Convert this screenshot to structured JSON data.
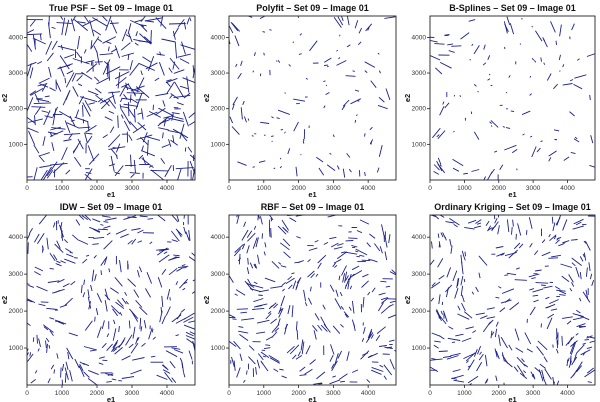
{
  "chart_data": [
    {
      "type": "quiver",
      "title": "True PSF – Set 09 – Image 01",
      "xlabel": "e1",
      "ylabel": "e2",
      "xlim": [
        0,
        4800
      ],
      "ylim": [
        0,
        4600
      ],
      "xticks": [
        0,
        1000,
        2000,
        3000,
        4000
      ],
      "yticks": [
        1000,
        2000,
        3000,
        4000
      ],
      "line_color": "#1a1f8c",
      "density": "high",
      "seed": 11
    },
    {
      "type": "quiver",
      "title": "Polyfit – Set 09 – Image 01",
      "xlabel": "e1",
      "ylabel": "e2",
      "xlim": [
        0,
        4800
      ],
      "ylim": [
        0,
        4600
      ],
      "xticks": [
        0,
        1000,
        2000,
        3000,
        4000
      ],
      "yticks": [
        1000,
        2000,
        3000,
        4000
      ],
      "line_color": "#1a1f8c",
      "density": "low",
      "seed": 23
    },
    {
      "type": "quiver",
      "title": "B-Splines – Set 09 – Image 01",
      "xlabel": "e1",
      "ylabel": "e2",
      "xlim": [
        0,
        4800
      ],
      "ylim": [
        0,
        4600
      ],
      "xticks": [
        0,
        1000,
        2000,
        3000,
        4000
      ],
      "yticks": [
        1000,
        2000,
        3000,
        4000
      ],
      "line_color": "#1a1f8c",
      "density": "low",
      "seed": 37
    },
    {
      "type": "quiver",
      "title": "IDW – Set 09 – Image 01",
      "xlabel": "e1",
      "ylabel": "e2",
      "xlim": [
        0,
        4800
      ],
      "ylim": [
        0,
        4600
      ],
      "xticks": [
        0,
        1000,
        2000,
        3000,
        4000
      ],
      "yticks": [
        1000,
        2000,
        3000,
        4000
      ],
      "line_color": "#1a1f8c",
      "density": "medium",
      "seed": 41
    },
    {
      "type": "quiver",
      "title": "RBF – Set 09 – Image 01",
      "xlabel": "e1",
      "ylabel": "e2",
      "xlim": [
        0,
        4800
      ],
      "ylim": [
        0,
        4600
      ],
      "xticks": [
        0,
        1000,
        2000,
        3000,
        4000
      ],
      "yticks": [
        1000,
        2000,
        3000,
        4000
      ],
      "line_color": "#1a1f8c",
      "density": "medium",
      "seed": 53
    },
    {
      "type": "quiver",
      "title": "Ordinary Kriging – Set 09 – Image 01",
      "xlabel": "e1",
      "ylabel": "e2",
      "xlim": [
        0,
        4800
      ],
      "ylim": [
        0,
        4600
      ],
      "xticks": [
        0,
        1000,
        2000,
        3000,
        4000
      ],
      "yticks": [
        1000,
        2000,
        3000,
        4000
      ],
      "line_color": "#1a1f8c",
      "density": "medium",
      "seed": 67
    }
  ]
}
